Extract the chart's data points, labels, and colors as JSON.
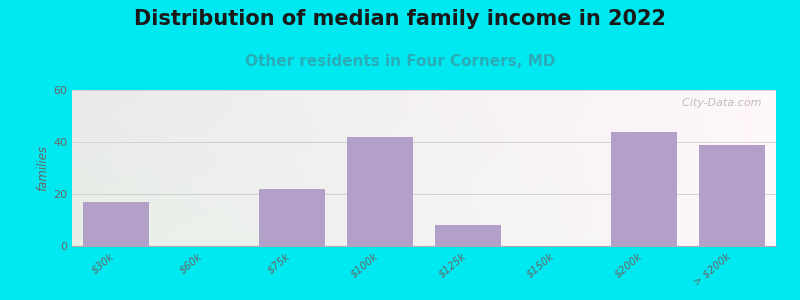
{
  "title": "Distribution of median family income in 2022",
  "subtitle": "Other residents in Four Corners, MD",
  "categories": [
    "$30k",
    "$60k",
    "$75k",
    "$100k",
    "$125k",
    "$150k",
    "$200k",
    "> $200k"
  ],
  "values": [
    17,
    0,
    22,
    42,
    8,
    0,
    44,
    39
  ],
  "bar_color": "#b3a0c8",
  "background_color": "#00e8f0",
  "ylim": [
    0,
    60
  ],
  "yticks": [
    0,
    20,
    40,
    60
  ],
  "ylabel": "families",
  "title_fontsize": 15,
  "subtitle_fontsize": 11,
  "subtitle_color": "#2aacb8",
  "watermark": "  City-Data.com",
  "grid_color": "#cccccc",
  "tick_color": "#666666",
  "gradient_topleft": "#d6edd6",
  "gradient_topright": "#eaf4f8",
  "gradient_bottomleft": "#c8e8c8",
  "gradient_bottomright": "#e8f4f8"
}
